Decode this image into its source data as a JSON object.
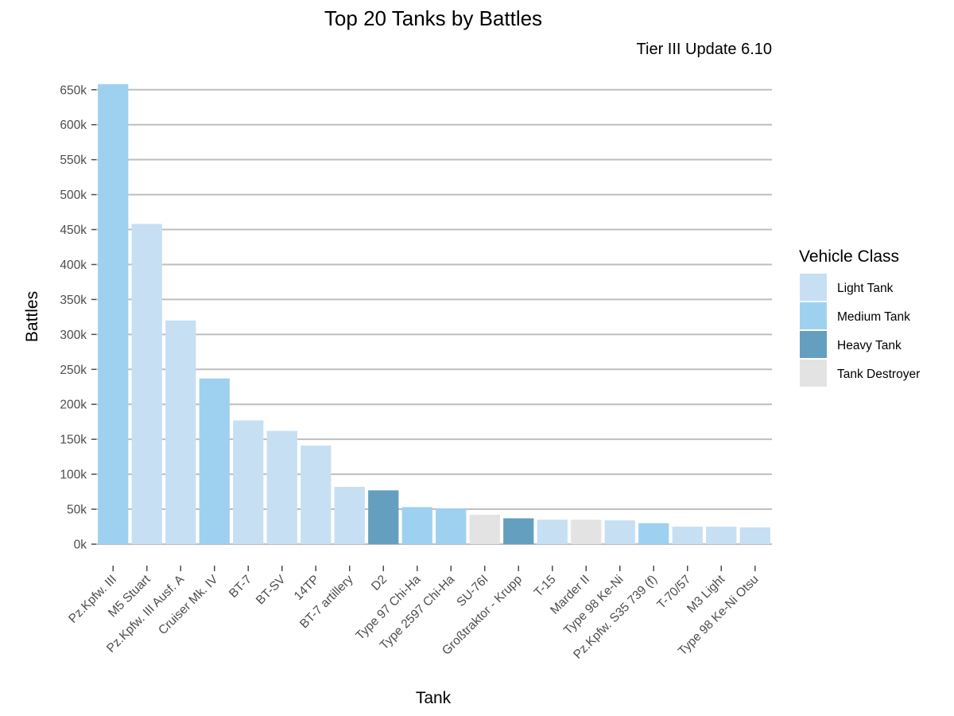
{
  "chart_data": {
    "type": "bar",
    "title": "Top 20 Tanks by Battles",
    "subtitle": "Tier III Update 6.10",
    "xlabel": "Tank",
    "ylabel": "Battles",
    "ylim": [
      0,
      660000
    ],
    "yticks": [
      0,
      50000,
      100000,
      150000,
      200000,
      250000,
      300000,
      350000,
      400000,
      450000,
      500000,
      550000,
      600000,
      650000
    ],
    "ytick_labels": [
      "0k",
      "50k",
      "100k",
      "150k",
      "200k",
      "250k",
      "300k",
      "350k",
      "400k",
      "450k",
      "500k",
      "550k",
      "600k",
      "650k"
    ],
    "grid": true,
    "legend_position": "right",
    "legend_title": "Vehicle Class",
    "classes": [
      {
        "name": "Light Tank",
        "color": "#c6dff3"
      },
      {
        "name": "Medium Tank",
        "color": "#9ed1f0"
      },
      {
        "name": "Heavy Tank",
        "color": "#659fbf"
      },
      {
        "name": "Tank Destroyer",
        "color": "#e3e3e3"
      }
    ],
    "categories": [
      "Pz.Kpfw. III",
      "M5 Stuart",
      "Pz.Kpfw. III Ausf. A",
      "Cruiser Mk. IV",
      "BT-7",
      "BT-SV",
      "14TP",
      "BT-7 artillery",
      "D2",
      "Type 97 Chi-Ha",
      "Type 2597 Chi-Ha",
      "SU-76I",
      "Großtraktor - Krupp",
      "T-15",
      "Marder II",
      "Type 98 Ke-Ni",
      "Pz.Kpfw. S35 739 (f)",
      "T-70/57",
      "M3 Light",
      "Type 98 Ke-Ni Otsu"
    ],
    "values": [
      658000,
      458000,
      320000,
      237000,
      177000,
      162000,
      141000,
      82000,
      77000,
      53000,
      51000,
      42000,
      37000,
      35000,
      35000,
      34000,
      30000,
      25000,
      25000,
      24000
    ],
    "vehicle_class": [
      "Medium Tank",
      "Light Tank",
      "Light Tank",
      "Medium Tank",
      "Light Tank",
      "Light Tank",
      "Light Tank",
      "Light Tank",
      "Heavy Tank",
      "Medium Tank",
      "Medium Tank",
      "Tank Destroyer",
      "Heavy Tank",
      "Light Tank",
      "Tank Destroyer",
      "Light Tank",
      "Medium Tank",
      "Light Tank",
      "Light Tank",
      "Light Tank"
    ]
  }
}
